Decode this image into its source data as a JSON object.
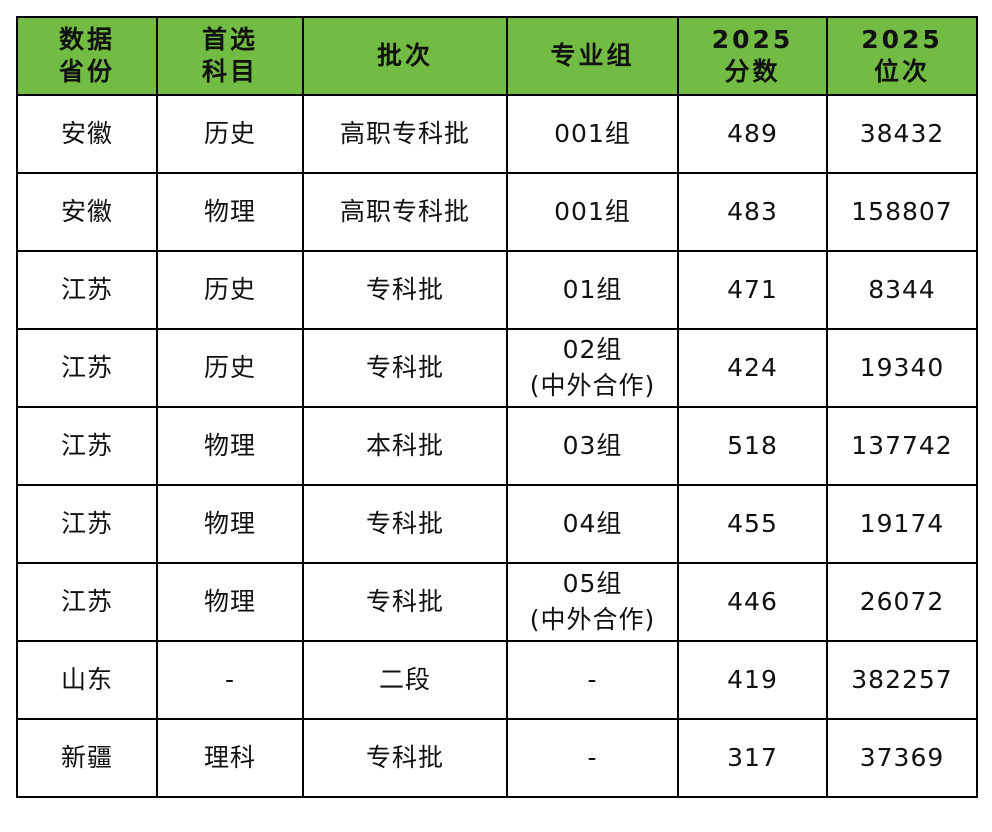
{
  "header_color": "#72bc44",
  "headers": [
    "数据\n省份",
    "首选\n科目",
    "批次",
    "专业组",
    "2025\n分数",
    "2025\n位次"
  ],
  "rows": [
    [
      "安徽",
      "历史",
      "高职专科批",
      "001组",
      "489",
      "38432"
    ],
    [
      "安徽",
      "物理",
      "高职专科批",
      "001组",
      "483",
      "158807"
    ],
    [
      "江苏",
      "历史",
      "专科批",
      "01组",
      "471",
      "8344"
    ],
    [
      "江苏",
      "历史",
      "专科批",
      "02组\n(中外合作)",
      "424",
      "19340"
    ],
    [
      "江苏",
      "物理",
      "本科批",
      "03组",
      "518",
      "137742"
    ],
    [
      "江苏",
      "物理",
      "专科批",
      "04组",
      "455",
      "19174"
    ],
    [
      "江苏",
      "物理",
      "专科批",
      "05组\n(中外合作)",
      "446",
      "26072"
    ],
    [
      "山东",
      "-",
      "二段",
      "-",
      "419",
      "382257"
    ],
    [
      "新疆",
      "理科",
      "专科批",
      "-",
      "317",
      "37369"
    ]
  ]
}
